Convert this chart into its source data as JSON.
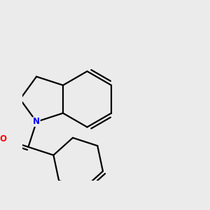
{
  "background_color": "#ebebeb",
  "bond_color": "#000000",
  "nitrogen_color": "#0000ff",
  "oxygen_color": "#ff0000",
  "bond_width": 1.6,
  "figsize": [
    3.0,
    3.0
  ],
  "dpi": 100
}
